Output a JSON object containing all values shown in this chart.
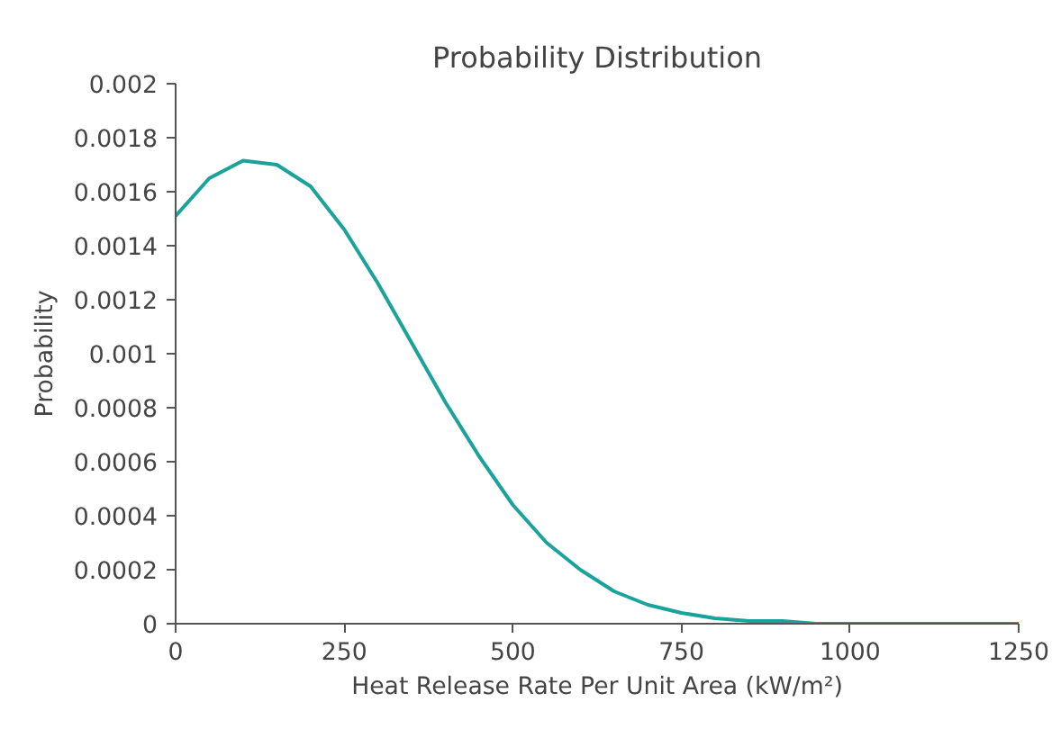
{
  "chart_data": {
    "type": "line",
    "title": "Probability Distribution",
    "xlabel": "Heat Release Rate Per Unit Area (kW/m²)",
    "ylabel": "Probability",
    "x": [
      0,
      50,
      100,
      150,
      200,
      250,
      300,
      350,
      400,
      450,
      500,
      550,
      600,
      650,
      700,
      750,
      800,
      850,
      900,
      950,
      1000,
      1100,
      1250
    ],
    "series": [
      {
        "color": "#1aa39a",
        "values": [
          0.00151,
          0.00165,
          0.001715,
          0.0017,
          0.00162,
          0.00146,
          0.00126,
          0.00104,
          0.00082,
          0.00062,
          0.00044,
          0.0003,
          0.0002,
          0.00012,
          7e-05,
          4e-05,
          2e-05,
          1e-05,
          1e-05,
          0,
          0,
          0,
          0
        ]
      }
    ],
    "xlim": [
      0,
      1250
    ],
    "xticks": [
      0,
      250,
      500,
      750,
      1000,
      1250
    ],
    "ylim": [
      0,
      0.002
    ],
    "yticks": [
      0,
      0.0002,
      0.0004,
      0.0006,
      0.0008,
      0.001,
      0.0012,
      0.0014,
      0.0016,
      0.0018,
      0.002
    ],
    "grid": false,
    "marker": "none",
    "line_style": "solid"
  }
}
